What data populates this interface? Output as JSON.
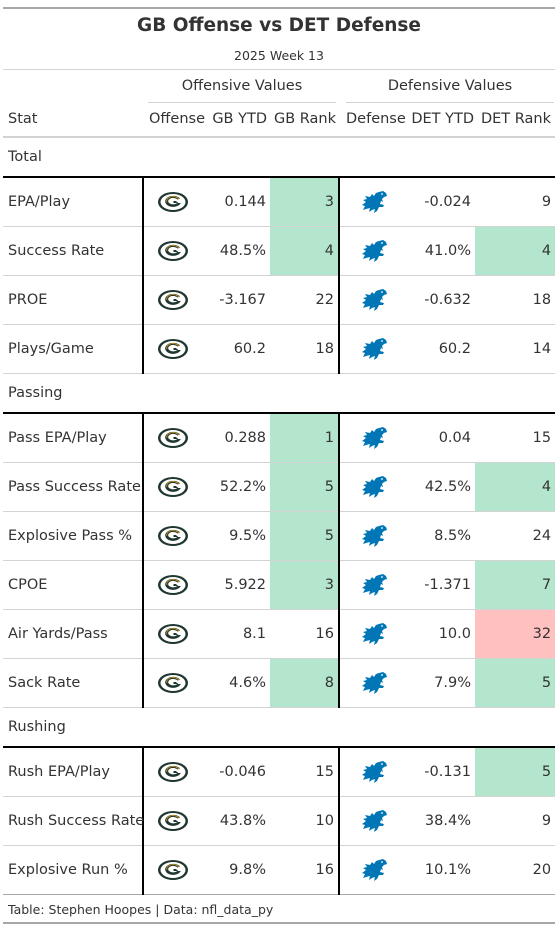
{
  "title": "GB Offense vs DET Defense",
  "subtitle": "2025 Week 13",
  "spanners": {
    "offense": "Offensive Values",
    "defense": "Defensive Values"
  },
  "columns": {
    "stat": "Stat",
    "offense": "Offense",
    "gb_ytd": "GB YTD",
    "gb_rank": "GB Rank",
    "defense": "Defense",
    "det_ytd": "DET YTD",
    "det_rank": "DET Rank"
  },
  "colors": {
    "good_rank": "#b3e6cc",
    "bad_rank": "#ffc0c0",
    "gb_green": "#203731",
    "gb_gold": "#ffb612",
    "det_blue": "#0076b6"
  },
  "logos": {
    "offense": "green-bay-packers-logo",
    "defense": "detroit-lions-logo"
  },
  "chart_data": {
    "type": "table",
    "groups": [
      {
        "name": "Total",
        "rows": [
          {
            "stat": "EPA/Play",
            "gb_ytd": "0.144",
            "gb_rank": "3",
            "gb_highlight": "good",
            "det_ytd": "-0.024",
            "det_rank": "9",
            "det_highlight": "none"
          },
          {
            "stat": "Success Rate",
            "gb_ytd": "48.5%",
            "gb_rank": "4",
            "gb_highlight": "good",
            "det_ytd": "41.0%",
            "det_rank": "4",
            "det_highlight": "good"
          },
          {
            "stat": "PROE",
            "gb_ytd": "-3.167",
            "gb_rank": "22",
            "gb_highlight": "none",
            "det_ytd": "-0.632",
            "det_rank": "18",
            "det_highlight": "none"
          },
          {
            "stat": "Plays/Game",
            "gb_ytd": "60.2",
            "gb_rank": "18",
            "gb_highlight": "none",
            "det_ytd": "60.2",
            "det_rank": "14",
            "det_highlight": "none"
          }
        ]
      },
      {
        "name": "Passing",
        "rows": [
          {
            "stat": "Pass EPA/Play",
            "gb_ytd": "0.288",
            "gb_rank": "1",
            "gb_highlight": "good",
            "det_ytd": "0.04",
            "det_rank": "15",
            "det_highlight": "none"
          },
          {
            "stat": "Pass Success Rate",
            "gb_ytd": "52.2%",
            "gb_rank": "5",
            "gb_highlight": "good",
            "det_ytd": "42.5%",
            "det_rank": "4",
            "det_highlight": "good"
          },
          {
            "stat": "Explosive Pass %",
            "gb_ytd": "9.5%",
            "gb_rank": "5",
            "gb_highlight": "good",
            "det_ytd": "8.5%",
            "det_rank": "24",
            "det_highlight": "none"
          },
          {
            "stat": "CPOE",
            "gb_ytd": "5.922",
            "gb_rank": "3",
            "gb_highlight": "good",
            "det_ytd": "-1.371",
            "det_rank": "7",
            "det_highlight": "good"
          },
          {
            "stat": "Air Yards/Pass",
            "gb_ytd": "8.1",
            "gb_rank": "16",
            "gb_highlight": "none",
            "det_ytd": "10.0",
            "det_rank": "32",
            "det_highlight": "bad"
          },
          {
            "stat": "Sack Rate",
            "gb_ytd": "4.6%",
            "gb_rank": "8",
            "gb_highlight": "good",
            "det_ytd": "7.9%",
            "det_rank": "5",
            "det_highlight": "good"
          }
        ]
      },
      {
        "name": "Rushing",
        "rows": [
          {
            "stat": "Rush EPA/Play",
            "gb_ytd": "-0.046",
            "gb_rank": "15",
            "gb_highlight": "none",
            "det_ytd": "-0.131",
            "det_rank": "5",
            "det_highlight": "good"
          },
          {
            "stat": "Rush Success Rate",
            "gb_ytd": "43.8%",
            "gb_rank": "10",
            "gb_highlight": "none",
            "det_ytd": "38.4%",
            "det_rank": "9",
            "det_highlight": "none"
          },
          {
            "stat": "Explosive Run %",
            "gb_ytd": "9.8%",
            "gb_rank": "16",
            "gb_highlight": "none",
            "det_ytd": "10.1%",
            "det_rank": "20",
            "det_highlight": "none"
          }
        ]
      }
    ]
  },
  "footer": "Table: Stephen Hoopes | Data: nfl_data_py"
}
